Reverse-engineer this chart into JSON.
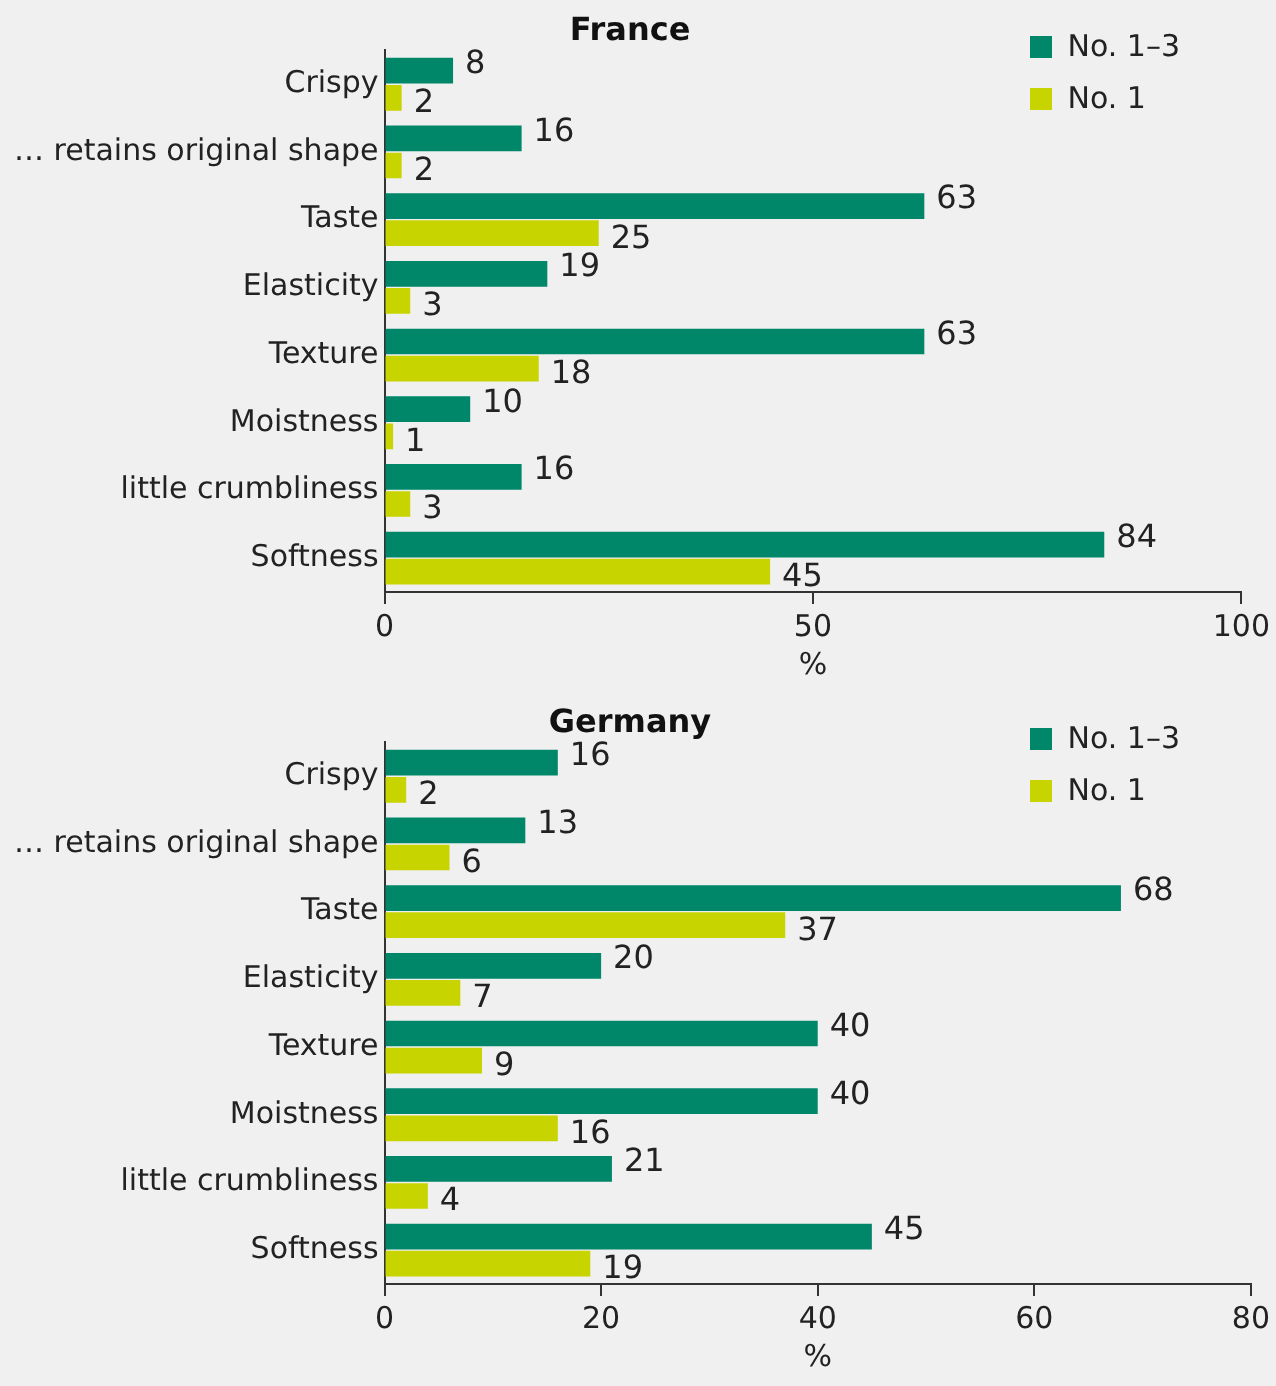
{
  "chart_data": [
    {
      "type": "bar",
      "orientation": "horizontal",
      "title": "France",
      "xlabel": "%",
      "categories": [
        "Crispy",
        "… retains original shape",
        "Taste",
        "Elasticity",
        "Texture",
        "Moistness",
        "little crumbliness",
        "Softness"
      ],
      "series": [
        {
          "name": "No. 1–3",
          "color": "#00876a",
          "values": [
            8,
            16,
            63,
            19,
            63,
            10,
            16,
            84
          ]
        },
        {
          "name": "No. 1",
          "color": "#c8d400",
          "values": [
            2,
            2,
            25,
            3,
            18,
            1,
            3,
            45
          ]
        }
      ],
      "xlim": [
        0,
        100
      ],
      "xticks": [
        0,
        50,
        100
      ],
      "legend": "top right",
      "data_labels": true
    },
    {
      "type": "bar",
      "orientation": "horizontal",
      "title": "Germany",
      "xlabel": "%",
      "categories": [
        "Crispy",
        "… retains original shape",
        "Taste",
        "Elasticity",
        "Texture",
        "Moistness",
        "little crumbliness",
        "Softness"
      ],
      "series": [
        {
          "name": "No. 1–3",
          "color": "#00876a",
          "values": [
            16,
            13,
            68,
            20,
            40,
            40,
            21,
            45
          ]
        },
        {
          "name": "No. 1",
          "color": "#c8d400",
          "values": [
            2,
            6,
            37,
            7,
            9,
            16,
            4,
            19
          ]
        }
      ],
      "xlim": [
        0,
        80
      ],
      "xticks": [
        0,
        20,
        40,
        60,
        80
      ],
      "legend": "top right",
      "data_labels": true
    }
  ]
}
